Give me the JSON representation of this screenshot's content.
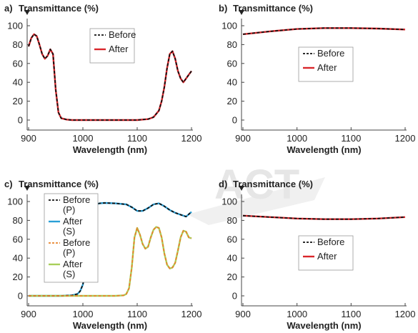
{
  "watermark": "ACT",
  "chart_data": [
    {
      "type": "line",
      "panel_label": "a)",
      "ylabel": "Transmittance (%)",
      "xlabel": "Wavelength (nm)",
      "xlim": [
        900,
        1200
      ],
      "ylim": [
        0,
        100
      ],
      "xticks": [
        "900",
        "1000",
        "1100",
        "1200"
      ],
      "yticks": [
        "0",
        "20",
        "40",
        "60",
        "80",
        "100"
      ],
      "series": [
        {
          "name": "Before",
          "color": "#111111",
          "dash": true,
          "x": [
            900,
            905,
            910,
            915,
            920,
            925,
            930,
            935,
            940,
            945,
            950,
            955,
            960,
            970,
            980,
            990,
            1000,
            1020,
            1040,
            1060,
            1080,
            1100,
            1110,
            1120,
            1130,
            1140,
            1145,
            1150,
            1155,
            1160,
            1165,
            1170,
            1175,
            1180,
            1185,
            1190,
            1195,
            1200
          ],
          "y": [
            78,
            87,
            91,
            89,
            80,
            70,
            65,
            68,
            75,
            70,
            32,
            8,
            2,
            0.5,
            0,
            0,
            0,
            0,
            0,
            0,
            0,
            0,
            0.5,
            1,
            3,
            10,
            20,
            35,
            55,
            70,
            73,
            65,
            52,
            44,
            40,
            44,
            48,
            52
          ]
        },
        {
          "name": "After",
          "color": "#d9262b",
          "dash": false,
          "x": [
            900,
            905,
            910,
            915,
            920,
            925,
            930,
            935,
            940,
            945,
            950,
            955,
            960,
            970,
            980,
            990,
            1000,
            1020,
            1040,
            1060,
            1080,
            1100,
            1110,
            1120,
            1130,
            1140,
            1145,
            1150,
            1155,
            1160,
            1165,
            1170,
            1175,
            1180,
            1185,
            1190,
            1195,
            1200
          ],
          "y": [
            78,
            87,
            91,
            89,
            80,
            70,
            65,
            68,
            75,
            70,
            32,
            8,
            2,
            0.5,
            0,
            0,
            0,
            0,
            0,
            0,
            0,
            0,
            0.5,
            1,
            3,
            10,
            20,
            35,
            55,
            70,
            73,
            65,
            52,
            44,
            40,
            44,
            48,
            52
          ]
        }
      ]
    },
    {
      "type": "line",
      "panel_label": "b)",
      "ylabel": "Transmittance (%)",
      "xlabel": "Wavelength (nm)",
      "xlim": [
        900,
        1200
      ],
      "ylim": [
        0,
        100
      ],
      "xticks": [
        "900",
        "1000",
        "1100",
        "1200"
      ],
      "yticks": [
        "0",
        "20",
        "40",
        "60",
        "80",
        "100"
      ],
      "series": [
        {
          "name": "Before",
          "color": "#111111",
          "dash": true,
          "x": [
            900,
            950,
            1000,
            1050,
            1100,
            1150,
            1200
          ],
          "y": [
            91,
            94,
            96.5,
            97.5,
            97.5,
            97,
            96
          ]
        },
        {
          "name": "After",
          "color": "#d9262b",
          "dash": false,
          "x": [
            900,
            950,
            1000,
            1050,
            1100,
            1150,
            1200
          ],
          "y": [
            91,
            94,
            96.5,
            97.5,
            97.5,
            97,
            96
          ]
        }
      ]
    },
    {
      "type": "line",
      "panel_label": "c)",
      "ylabel": "Transmittance (%)",
      "xlabel": "Wavelength (nm)",
      "xlim": [
        900,
        1200
      ],
      "ylim": [
        0,
        100
      ],
      "xticks": [
        "900",
        "1000",
        "1100",
        "1200"
      ],
      "yticks": [
        "0",
        "20",
        "40",
        "60",
        "80",
        "100"
      ],
      "series": [
        {
          "name": "Before\n(P)",
          "color": "#111111",
          "dash": true,
          "x": [
            900,
            960,
            980,
            990,
            995,
            1000,
            1005,
            1010,
            1015,
            1020,
            1025,
            1030,
            1040,
            1060,
            1080,
            1090,
            1100,
            1110,
            1120,
            1130,
            1140,
            1150,
            1160,
            1170,
            1180,
            1190,
            1200
          ],
          "y": [
            0,
            0,
            0.5,
            2,
            5,
            12,
            28,
            55,
            80,
            93,
            97,
            98,
            98.5,
            98,
            97,
            94,
            90,
            90,
            93,
            97,
            98,
            95,
            91,
            88,
            86,
            84,
            89
          ]
        },
        {
          "name": "After\n(S)",
          "color": "#2a9fd6",
          "dash": false,
          "x": [
            900,
            960,
            980,
            990,
            995,
            1000,
            1005,
            1010,
            1015,
            1020,
            1025,
            1030,
            1040,
            1060,
            1080,
            1090,
            1100,
            1110,
            1120,
            1130,
            1140,
            1150,
            1160,
            1170,
            1180,
            1190,
            1200
          ],
          "y": [
            0,
            0,
            0.5,
            2,
            5,
            12,
            28,
            55,
            80,
            93,
            97,
            98,
            98.5,
            98,
            97,
            94,
            90,
            90,
            93,
            97,
            98,
            95,
            91,
            88,
            86,
            84,
            89
          ]
        },
        {
          "name": "Before\n(P)",
          "color": "#e8822a",
          "dash": true,
          "x": [
            900,
            1000,
            1060,
            1075,
            1080,
            1085,
            1090,
            1095,
            1100,
            1105,
            1110,
            1115,
            1120,
            1125,
            1130,
            1135,
            1140,
            1145,
            1150,
            1155,
            1160,
            1165,
            1170,
            1175,
            1180,
            1185,
            1190,
            1195,
            1200
          ],
          "y": [
            0,
            0,
            0,
            0.5,
            2,
            8,
            30,
            62,
            72,
            65,
            55,
            50,
            52,
            62,
            70,
            73,
            72,
            62,
            45,
            33,
            29,
            30,
            35,
            48,
            62,
            69,
            68,
            62,
            61
          ]
        },
        {
          "name": "After\n(S)",
          "color": "#a8cf5a",
          "dash": false,
          "x": [
            900,
            1000,
            1060,
            1075,
            1080,
            1085,
            1090,
            1095,
            1100,
            1105,
            1110,
            1115,
            1120,
            1125,
            1130,
            1135,
            1140,
            1145,
            1150,
            1155,
            1160,
            1165,
            1170,
            1175,
            1180,
            1185,
            1190,
            1195,
            1200
          ],
          "y": [
            0,
            0,
            0,
            0.5,
            2,
            8,
            30,
            62,
            72,
            65,
            55,
            50,
            52,
            62,
            70,
            73,
            72,
            62,
            45,
            33,
            29,
            30,
            35,
            48,
            62,
            69,
            68,
            62,
            61
          ]
        }
      ]
    },
    {
      "type": "line",
      "panel_label": "d)",
      "ylabel": "Transmittance (%)",
      "xlabel": "Wavelength (nm)",
      "xlim": [
        900,
        1200
      ],
      "ylim": [
        0,
        100
      ],
      "xticks": [
        "900",
        "1000",
        "1100",
        "1200"
      ],
      "yticks": [
        "0",
        "20",
        "40",
        "60",
        "80",
        "100"
      ],
      "series": [
        {
          "name": "Before",
          "color": "#111111",
          "dash": true,
          "x": [
            900,
            950,
            1000,
            1050,
            1100,
            1150,
            1200
          ],
          "y": [
            85,
            83.5,
            82,
            81.3,
            81.3,
            82,
            83.5
          ]
        },
        {
          "name": "After",
          "color": "#d9262b",
          "dash": false,
          "x": [
            900,
            950,
            1000,
            1050,
            1100,
            1150,
            1200
          ],
          "y": [
            85,
            83.5,
            82,
            81.3,
            81.3,
            82,
            83.5
          ]
        }
      ]
    }
  ]
}
